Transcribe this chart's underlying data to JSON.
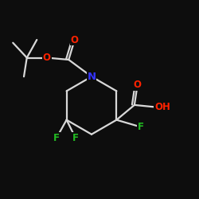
{
  "background_color": "#0d0d0d",
  "bond_color": "#d8d8d8",
  "bond_width": 1.6,
  "atom_colors": {
    "O": "#ff2200",
    "N": "#3333ff",
    "F": "#22bb22",
    "C": "#d8d8d8"
  },
  "font_size": 8.5
}
